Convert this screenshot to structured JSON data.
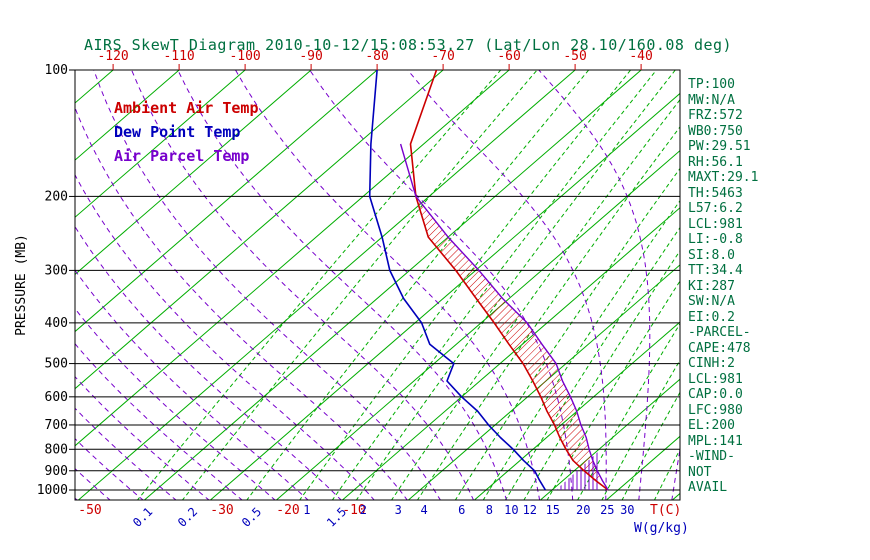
{
  "title": "AIRS SkewT Diagram 2010-10-12/15:08:53.27 (Lat/Lon 28.10/160.08 deg)",
  "colors": {
    "title_text": "#007040",
    "stats_text": "#007040",
    "isotherm_green": "#00AD00",
    "mixing_ratio_green": "#00AD00",
    "moist_adiabat_purple": "#7700CC",
    "temp_red": "#CC0000",
    "dewpoint_blue": "#0000BB",
    "parcel_purple": "#7700CC",
    "axis_black": "#000000"
  },
  "legend": {
    "items": [
      {
        "label": "Ambient Air Temp",
        "color": "#CC0000"
      },
      {
        "label": "Dew Point Temp",
        "color": "#0000BB"
      },
      {
        "label": "Air Parcel Temp",
        "color": "#7700CC"
      }
    ]
  },
  "stats": {
    "lines": [
      "TP:100",
      "MW:N/A",
      "FRZ:572",
      "WB0:750",
      "PW:29.51",
      "RH:56.1",
      "MAXT:29.1",
      "TH:5463",
      "L57:6.2",
      "LCL:981",
      "LI:-0.8",
      "SI:8.0",
      "TT:34.4",
      "KI:287",
      "SW:N/A",
      "EI:0.2",
      "-PARCEL-",
      "CAPE:478",
      "CINH:2",
      "LCL:981",
      "CAP:0.0",
      "LFC:980",
      "EL:200",
      "MPL:141",
      "-WIND-",
      "NOT",
      "AVAIL"
    ]
  },
  "axes": {
    "pressure_label": "PRESSURE (MB)",
    "pressure_ticks": [
      100,
      200,
      300,
      400,
      500,
      600,
      700,
      800,
      900,
      1000
    ],
    "top_temp_ticks": [
      -120,
      -110,
      -100,
      -90,
      -80,
      -70,
      -60,
      -50,
      -40
    ],
    "bottom_temp_ticks": [
      -50,
      -30,
      -20,
      -10
    ],
    "mixing_ratio_ticks": [
      0.1,
      0.2,
      0.5,
      1,
      1.5,
      2,
      3,
      4,
      6,
      8,
      10,
      12,
      15,
      20,
      25,
      30
    ],
    "rotated_mixing_labels": [
      0.1,
      0.2,
      0.5,
      1.5
    ],
    "temp_unit_label": "T(C)",
    "mixr_unit_label": "W(g/kg)"
  },
  "chart_data": {
    "type": "skewt",
    "title": "AIRS SkewT Diagram 2010-10-12/15:08:53.27 (Lat/Lon 28.10/160.08 deg)",
    "pressure_axis": {
      "unit": "MB",
      "range": [
        100,
        1000
      ],
      "log_scale": true
    },
    "top_temp_axis_range_c": [
      -120,
      -40
    ],
    "isotherm_range_c": [
      -130,
      40
    ],
    "isotherm_step_c": 10,
    "mixing_ratio_lines_gkg": [
      0.1,
      0.2,
      0.5,
      1,
      1.5,
      2,
      3,
      4,
      6,
      8,
      10,
      12,
      15,
      20,
      25,
      30,
      40,
      50
    ],
    "moist_adiabat_surface_temps_c": [
      -60,
      -55,
      -50,
      -45,
      -40,
      -35,
      -30,
      -25,
      -20,
      -15,
      -10,
      -5,
      0,
      5,
      10,
      15,
      20,
      25,
      30,
      35,
      40,
      45
    ],
    "series": [
      {
        "name": "Ambient Air Temp",
        "color": "#CC0000",
        "points_p_t": [
          [
            100,
            -71
          ],
          [
            150,
            -62
          ],
          [
            200,
            -52
          ],
          [
            250,
            -43
          ],
          [
            300,
            -33
          ],
          [
            350,
            -25
          ],
          [
            400,
            -18
          ],
          [
            450,
            -12
          ],
          [
            500,
            -6.5
          ],
          [
            550,
            -2
          ],
          [
            600,
            2
          ],
          [
            650,
            5.5
          ],
          [
            700,
            9
          ],
          [
            750,
            12
          ],
          [
            800,
            15
          ],
          [
            850,
            18
          ],
          [
            900,
            21.5
          ],
          [
            950,
            25
          ],
          [
            1000,
            28.5
          ]
        ]
      },
      {
        "name": "Dew Point Temp",
        "color": "#0000BB",
        "points_p_t": [
          [
            100,
            -80
          ],
          [
            150,
            -68
          ],
          [
            200,
            -59
          ],
          [
            250,
            -50
          ],
          [
            300,
            -43
          ],
          [
            350,
            -36
          ],
          [
            400,
            -29
          ],
          [
            450,
            -24
          ],
          [
            500,
            -17
          ],
          [
            550,
            -15
          ],
          [
            600,
            -10
          ],
          [
            650,
            -5
          ],
          [
            700,
            -1
          ],
          [
            750,
            3
          ],
          [
            800,
            7
          ],
          [
            850,
            10.5
          ],
          [
            900,
            14
          ],
          [
            950,
            16.5
          ],
          [
            1000,
            19
          ]
        ]
      },
      {
        "name": "Air Parcel Temp",
        "color": "#7700CC",
        "points_p_t": [
          [
            150,
            -63.5
          ],
          [
            200,
            -52
          ],
          [
            250,
            -40
          ],
          [
            300,
            -29.5
          ],
          [
            350,
            -21
          ],
          [
            400,
            -13
          ],
          [
            450,
            -7
          ],
          [
            500,
            -1.5
          ],
          [
            550,
            2.5
          ],
          [
            600,
            6.5
          ],
          [
            650,
            10
          ],
          [
            700,
            13
          ],
          [
            750,
            16
          ],
          [
            800,
            18.5
          ],
          [
            850,
            21
          ],
          [
            900,
            23.5
          ],
          [
            950,
            26
          ],
          [
            1000,
            28.5
          ]
        ]
      }
    ],
    "cape_hatch_between": [
      "Air Parcel Temp",
      "Ambient Air Temp"
    ],
    "cape_hatch_pressure_range": [
      200,
      950
    ],
    "indices": {
      "CAPE": 478,
      "CINH": 2,
      "LCL": 981,
      "LFC": 980,
      "EL": 200,
      "MPL": 141
    }
  }
}
